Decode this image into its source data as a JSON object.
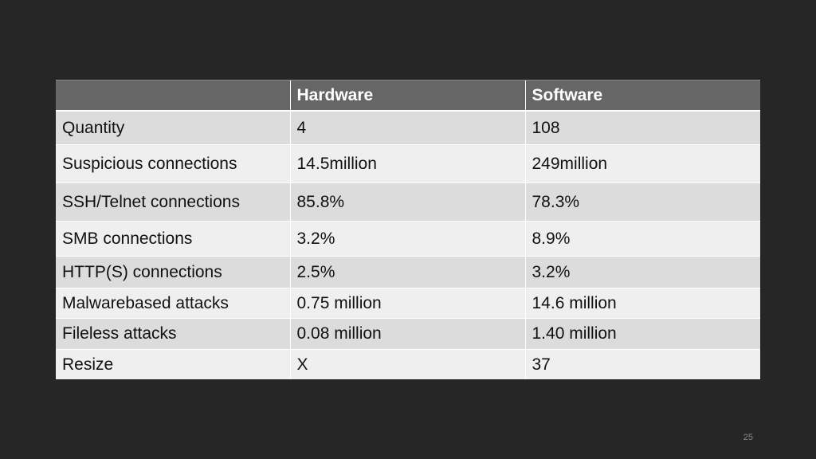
{
  "table": {
    "headers": [
      "",
      "Hardware",
      "Software"
    ],
    "rows": [
      {
        "label": "Quantity",
        "hardware": "4",
        "software": "108"
      },
      {
        "label": "Suspicious connections",
        "hardware": "14.5million",
        "software": "249million"
      },
      {
        "label": "SSH/Telnet connections",
        "hardware": "85.8%",
        "software": "78.3%"
      },
      {
        "label": "SMB connections",
        "hardware": "3.2%",
        "software": "8.9%"
      },
      {
        "label": "HTTP(S) connections",
        "hardware": "2.5%",
        "software": "3.2%"
      },
      {
        "label": "Malwarebased attacks",
        "hardware": "0.75 million",
        "software": "14.6 million"
      },
      {
        "label": "Fileless attacks",
        "hardware": "0.08 million",
        "software": "1.40 million"
      },
      {
        "label": "Resize",
        "hardware": "X",
        "software": "37"
      }
    ]
  },
  "slide_number": "25",
  "colors": {
    "background": "#262626",
    "header": "#666666",
    "row_dark": "#dcdcdc",
    "row_light": "#efefef"
  }
}
